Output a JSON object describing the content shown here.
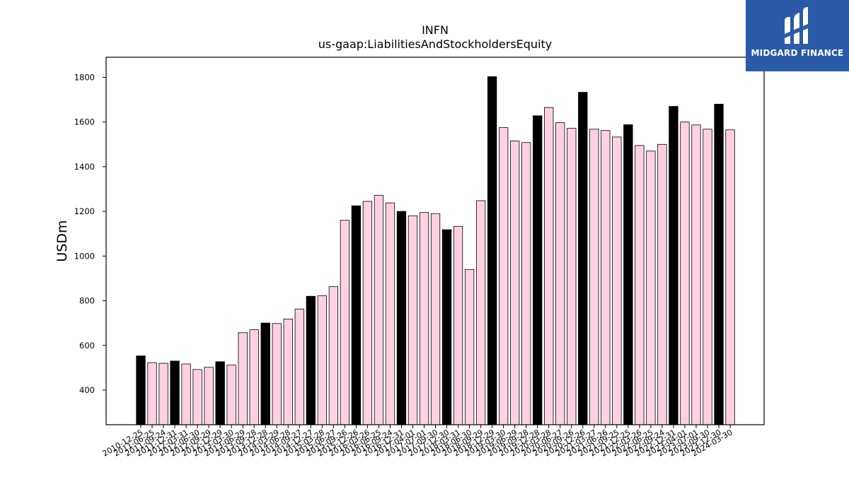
{
  "chart_data": {
    "type": "bar",
    "title": "INFN",
    "subtitle": "us-gaap:LiabilitiesAndStockholdersEquity",
    "ylabel": "USDm",
    "xlabel": "",
    "ylim": [
      245,
      1890
    ],
    "yticks": [
      400,
      600,
      800,
      1000,
      1200,
      1400,
      1600,
      1800
    ],
    "grid": false,
    "categories": [
      "2010-12-25",
      "2011-06-25",
      "2011-09-24",
      "2011-12-31",
      "2012-03-31",
      "2012-06-30",
      "2012-09-29",
      "2012-12-29",
      "2013-03-30",
      "2013-06-29",
      "2013-09-28",
      "2013-12-28",
      "2014-03-29",
      "2014-06-28",
      "2014-09-27",
      "2014-12-27",
      "2015-03-28",
      "2015-06-27",
      "2015-09-26",
      "2015-12-26",
      "2016-03-26",
      "2016-06-25",
      "2016-09-24",
      "2016-12-31",
      "2017-04-01",
      "2017-07-01",
      "2017-09-30",
      "2017-12-30",
      "2018-03-31",
      "2018-06-30",
      "2018-09-29",
      "2018-12-29",
      "2019-03-30",
      "2019-06-29",
      "2019-09-28",
      "2019-12-28",
      "2020-03-28",
      "2020-06-27",
      "2020-09-26",
      "2020-12-26",
      "2021-03-27",
      "2021-06-26",
      "2021-09-25",
      "2021-12-25",
      "2022-03-26",
      "2022-06-25",
      "2022-09-24",
      "2022-12-31",
      "2023-04-01",
      "2023-07-01",
      "2023-09-30",
      "2023-12-30",
      "2024-03-30"
    ],
    "values": [
      553,
      523,
      520,
      530,
      517,
      492,
      502,
      527,
      512,
      657,
      670,
      700,
      698,
      718,
      763,
      820,
      822,
      863,
      1160,
      1225,
      1245,
      1272,
      1238,
      1200,
      1180,
      1195,
      1190,
      1118,
      1133,
      940,
      1248,
      1803,
      1575,
      1515,
      1508,
      1628,
      1665,
      1597,
      1572,
      1733,
      1568,
      1562,
      1533,
      1588,
      1495,
      1470,
      1500,
      1670,
      1600,
      1587,
      1568,
      1680,
      1565
    ],
    "highlight_indices": [
      0,
      3,
      7,
      11,
      15,
      19,
      23,
      27,
      31,
      35,
      39,
      43,
      47,
      51
    ],
    "colors": {
      "bar": "#ffd0e3",
      "highlight": "#000000",
      "edge": "#000000",
      "brand": "#2b5aa8"
    }
  },
  "brand": {
    "name": "MIDGARD FINANCE"
  }
}
